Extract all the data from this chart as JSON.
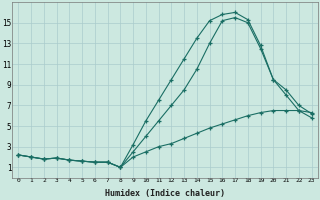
{
  "title": "",
  "xlabel": "Humidex (Indice chaleur)",
  "bg_color": "#cce8e0",
  "grid_color": "#aacccc",
  "line_color": "#1a6e64",
  "xlim": [
    -0.5,
    23.5
  ],
  "ylim": [
    0,
    17
  ],
  "xticks": [
    0,
    1,
    2,
    3,
    4,
    5,
    6,
    7,
    8,
    9,
    10,
    11,
    12,
    13,
    14,
    15,
    16,
    17,
    18,
    19,
    20,
    21,
    22,
    23
  ],
  "yticks": [
    1,
    3,
    5,
    7,
    9,
    11,
    13,
    15
  ],
  "line1_x": [
    0,
    1,
    2,
    3,
    4,
    5,
    6,
    7,
    8,
    9,
    10,
    11,
    12,
    13,
    14,
    15,
    16,
    17,
    18,
    19,
    20,
    21,
    22,
    23
  ],
  "line1_y": [
    2.2,
    2.0,
    1.8,
    1.9,
    1.7,
    1.6,
    1.5,
    1.5,
    1.0,
    3.2,
    5.5,
    7.5,
    9.5,
    11.5,
    13.5,
    15.2,
    15.8,
    16.0,
    15.3,
    12.8,
    9.5,
    8.5,
    7.0,
    6.2
  ],
  "line2_x": [
    0,
    1,
    2,
    3,
    4,
    5,
    6,
    7,
    8,
    9,
    10,
    11,
    12,
    13,
    14,
    15,
    16,
    17,
    18,
    19,
    20,
    21,
    22,
    23
  ],
  "line2_y": [
    2.2,
    2.0,
    1.8,
    1.9,
    1.7,
    1.6,
    1.5,
    1.5,
    1.0,
    2.5,
    4.0,
    5.5,
    7.0,
    8.5,
    10.5,
    13.0,
    15.2,
    15.5,
    15.0,
    12.5,
    9.5,
    8.0,
    6.5,
    5.8
  ],
  "line3_x": [
    0,
    1,
    2,
    3,
    4,
    5,
    6,
    7,
    8,
    9,
    10,
    11,
    12,
    13,
    14,
    15,
    16,
    17,
    18,
    19,
    20,
    21,
    22,
    23
  ],
  "line3_y": [
    2.2,
    2.0,
    1.8,
    1.9,
    1.7,
    1.6,
    1.5,
    1.5,
    1.0,
    2.0,
    2.5,
    3.0,
    3.3,
    3.8,
    4.3,
    4.8,
    5.2,
    5.6,
    6.0,
    6.3,
    6.5,
    6.5,
    6.5,
    6.3
  ]
}
